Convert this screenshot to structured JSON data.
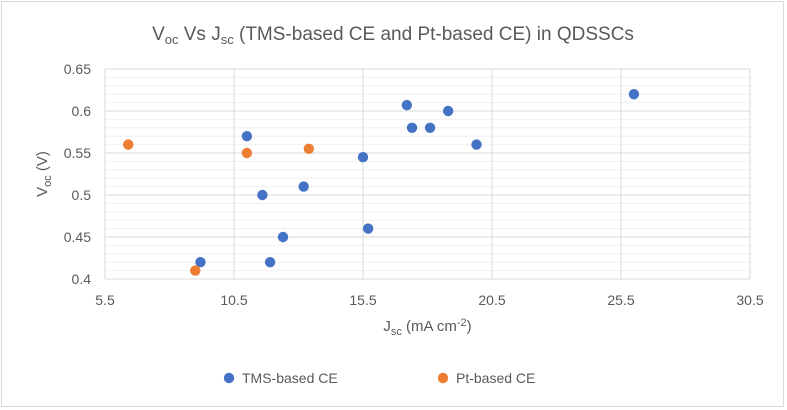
{
  "chart_data": {
    "type": "scatter",
    "title": {
      "main": "V",
      "main_sub": "oc",
      "mid": " Vs J",
      "mid_sub": "sc",
      "rest": " (TMS-based CE and Pt-based CE) in QDSSCs"
    },
    "xlabel": {
      "main": "J",
      "sub": "sc",
      "rest": " (mA cm",
      "sup": "-2",
      "end": ")"
    },
    "ylabel": {
      "main": "V",
      "sub": "oc",
      "rest": " (V)"
    },
    "xlim": [
      5.5,
      30.5
    ],
    "ylim": [
      0.4,
      0.65
    ],
    "xticks": [
      "5.5",
      "10.5",
      "15.5",
      "20.5",
      "25.5",
      "30.5"
    ],
    "yticks": [
      "0.4",
      "0.45",
      "0.5",
      "0.55",
      "0.6",
      "0.65"
    ],
    "grid": true,
    "legend_position": "bottom",
    "series": [
      {
        "name": "TMS-based CE",
        "color": "#4472c4",
        "points": [
          {
            "x": 9.2,
            "y": 0.42
          },
          {
            "x": 11.0,
            "y": 0.57
          },
          {
            "x": 11.6,
            "y": 0.5
          },
          {
            "x": 11.9,
            "y": 0.42
          },
          {
            "x": 12.4,
            "y": 0.45
          },
          {
            "x": 13.2,
            "y": 0.51
          },
          {
            "x": 15.5,
            "y": 0.545
          },
          {
            "x": 15.7,
            "y": 0.46
          },
          {
            "x": 17.2,
            "y": 0.607
          },
          {
            "x": 17.4,
            "y": 0.58
          },
          {
            "x": 18.1,
            "y": 0.58
          },
          {
            "x": 18.8,
            "y": 0.6
          },
          {
            "x": 19.9,
            "y": 0.56
          },
          {
            "x": 26.0,
            "y": 0.62
          }
        ]
      },
      {
        "name": "Pt-based CE",
        "color": "#ed7d31",
        "points": [
          {
            "x": 6.4,
            "y": 0.56
          },
          {
            "x": 9.0,
            "y": 0.41
          },
          {
            "x": 11.0,
            "y": 0.55
          },
          {
            "x": 13.4,
            "y": 0.555
          }
        ]
      }
    ]
  }
}
